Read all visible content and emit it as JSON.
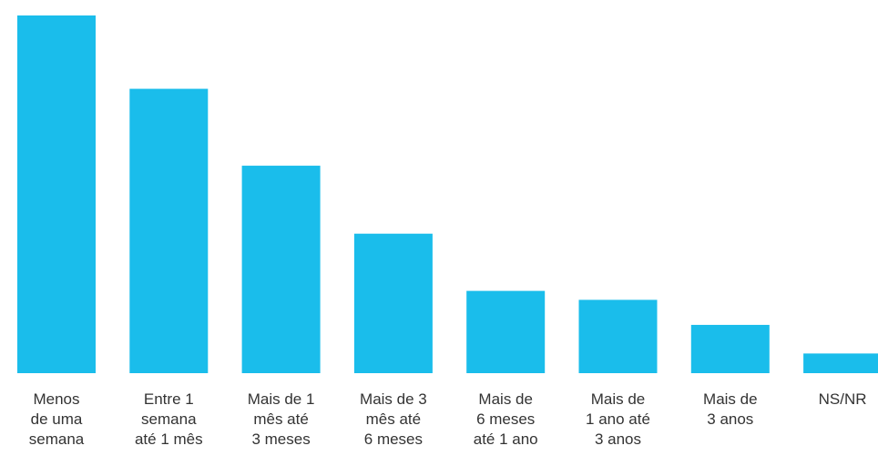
{
  "chart_data": {
    "type": "bar",
    "categories": [
      "Menos\nde uma\nsemana",
      "Entre 1\nsemana\naté 1 mês",
      "Mais de 1\nmês até\n3 meses",
      "Mais de 3\nmês até\n6 meses",
      "Mais de\n6 meses\naté 1 ano",
      "Mais de\n1 ano até\n3 anos",
      "Mais de\n3 anos",
      "NS/NR"
    ],
    "values": [
      100,
      79.5,
      58,
      39,
      23,
      20.5,
      13.5,
      5.5
    ],
    "color": "#1ABDEB",
    "title": "",
    "xlabel": "",
    "ylabel": "",
    "ylim": [
      0,
      100
    ],
    "grid": false,
    "legend": "none"
  }
}
